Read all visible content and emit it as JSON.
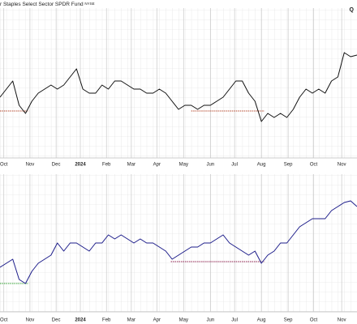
{
  "chart_data": [
    {
      "type": "line",
      "title": "r Staples Select Sector SPDR Fund",
      "exchange": "NYSE",
      "corner_label": "Q",
      "xlim": [
        0,
        56
      ],
      "ylim": [
        0,
        185
      ],
      "xticks": [
        {
          "value": 0.6,
          "label": "Oct"
        },
        {
          "value": 4.7,
          "label": "Nov"
        },
        {
          "value": 8.8,
          "label": "Dec"
        },
        {
          "value": 12.6,
          "label": "2024"
        },
        {
          "value": 16.7,
          "label": "Feb"
        },
        {
          "value": 20.6,
          "label": "Mar"
        },
        {
          "value": 24.6,
          "label": "Apr"
        },
        {
          "value": 28.8,
          "label": "May"
        },
        {
          "value": 33,
          "label": "Jun"
        },
        {
          "value": 36.8,
          "label": "Jul"
        },
        {
          "value": 41,
          "label": "Aug"
        },
        {
          "value": 45.2,
          "label": "Sep"
        },
        {
          "value": 49.2,
          "label": "Oct"
        },
        {
          "value": 53.6,
          "label": "Nov"
        }
      ],
      "series": [
        {
          "color": "#111111",
          "values": [
            75,
            85,
            95,
            65,
            55,
            70,
            80,
            85,
            90,
            85,
            90,
            100,
            110,
            85,
            80,
            80,
            90,
            85,
            95,
            95,
            90,
            85,
            85,
            80,
            80,
            85,
            80,
            70,
            60,
            65,
            65,
            60,
            65,
            65,
            70,
            75,
            85,
            95,
            95,
            80,
            70,
            45,
            55,
            50,
            55,
            50,
            60,
            75,
            85,
            80,
            85,
            80,
            95,
            100,
            130,
            125,
            127
          ]
        }
      ],
      "reference_lines": [
        {
          "value": 58,
          "from": 0,
          "to": 4.5,
          "color": "#b5462a"
        },
        {
          "value": 58,
          "from": 30,
          "to": 41.5,
          "color": "#b5462a"
        }
      ],
      "grid": true
    },
    {
      "type": "line",
      "xlim": [
        0,
        56
      ],
      "ylim": [
        0,
        170
      ],
      "xticks": [
        {
          "value": 0.6,
          "label": "Oct"
        },
        {
          "value": 4.7,
          "label": "Nov"
        },
        {
          "value": 8.8,
          "label": "Dec"
        },
        {
          "value": 12.6,
          "label": "2024"
        },
        {
          "value": 16.7,
          "label": "Feb"
        },
        {
          "value": 20.6,
          "label": "Mar"
        },
        {
          "value": 24.6,
          "label": "Apr"
        },
        {
          "value": 28.8,
          "label": "May"
        },
        {
          "value": 33,
          "label": "Jun"
        },
        {
          "value": 36.8,
          "label": "Jul"
        },
        {
          "value": 41,
          "label": "Aug"
        },
        {
          "value": 45.2,
          "label": "Sep"
        },
        {
          "value": 49.2,
          "label": "Oct"
        },
        {
          "value": 53.6,
          "label": "Nov"
        }
      ],
      "series": [
        {
          "color": "#1c1c8a",
          "values": [
            55,
            60,
            65,
            40,
            35,
            50,
            60,
            65,
            70,
            85,
            75,
            85,
            85,
            80,
            75,
            85,
            85,
            95,
            90,
            95,
            90,
            85,
            90,
            85,
            85,
            80,
            75,
            65,
            70,
            75,
            80,
            80,
            85,
            85,
            90,
            95,
            85,
            80,
            75,
            70,
            75,
            60,
            70,
            75,
            85,
            85,
            95,
            105,
            110,
            115,
            115,
            115,
            125,
            130,
            135,
            137,
            130
          ]
        }
      ],
      "reference_lines": [
        {
          "value": 35,
          "from": 0,
          "to": 4.5,
          "color": "#2a9d2a"
        },
        {
          "value": 62,
          "from": 26.8,
          "to": 41.5,
          "color": "#8b1a4a"
        }
      ],
      "grid": true
    }
  ]
}
